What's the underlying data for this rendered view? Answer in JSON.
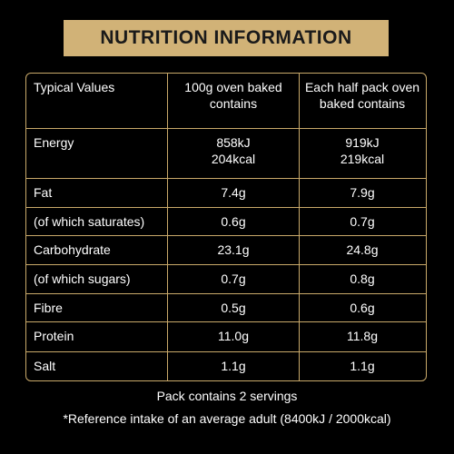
{
  "header": {
    "title": "NUTRITION INFORMATION"
  },
  "table": {
    "header": [
      "Typical Values",
      [
        "100g oven baked",
        "contains"
      ],
      [
        "Each half pack oven",
        "baked contains"
      ]
    ],
    "rows": [
      [
        "Energy",
        [
          "858kJ",
          "204kcal"
        ],
        [
          "919kJ",
          "219kcal"
        ]
      ],
      [
        "Fat",
        "7.4g",
        "7.9g"
      ],
      [
        "(of which saturates)",
        "0.6g",
        "0.7g"
      ],
      [
        "Carbohydrate",
        "23.1g",
        "24.8g"
      ],
      [
        "(of which sugars)",
        "0.7g",
        "0.8g"
      ],
      [
        "Fibre",
        "0.5g",
        "0.6g"
      ],
      [
        "Protein",
        "11.0g",
        "11.8g"
      ],
      [
        "Salt",
        "1.1g",
        "1.1g"
      ]
    ]
  },
  "footer": [
    "Pack contains 2 servings",
    "*Reference intake of an average adult (8400kJ / 2000kcal)"
  ]
}
